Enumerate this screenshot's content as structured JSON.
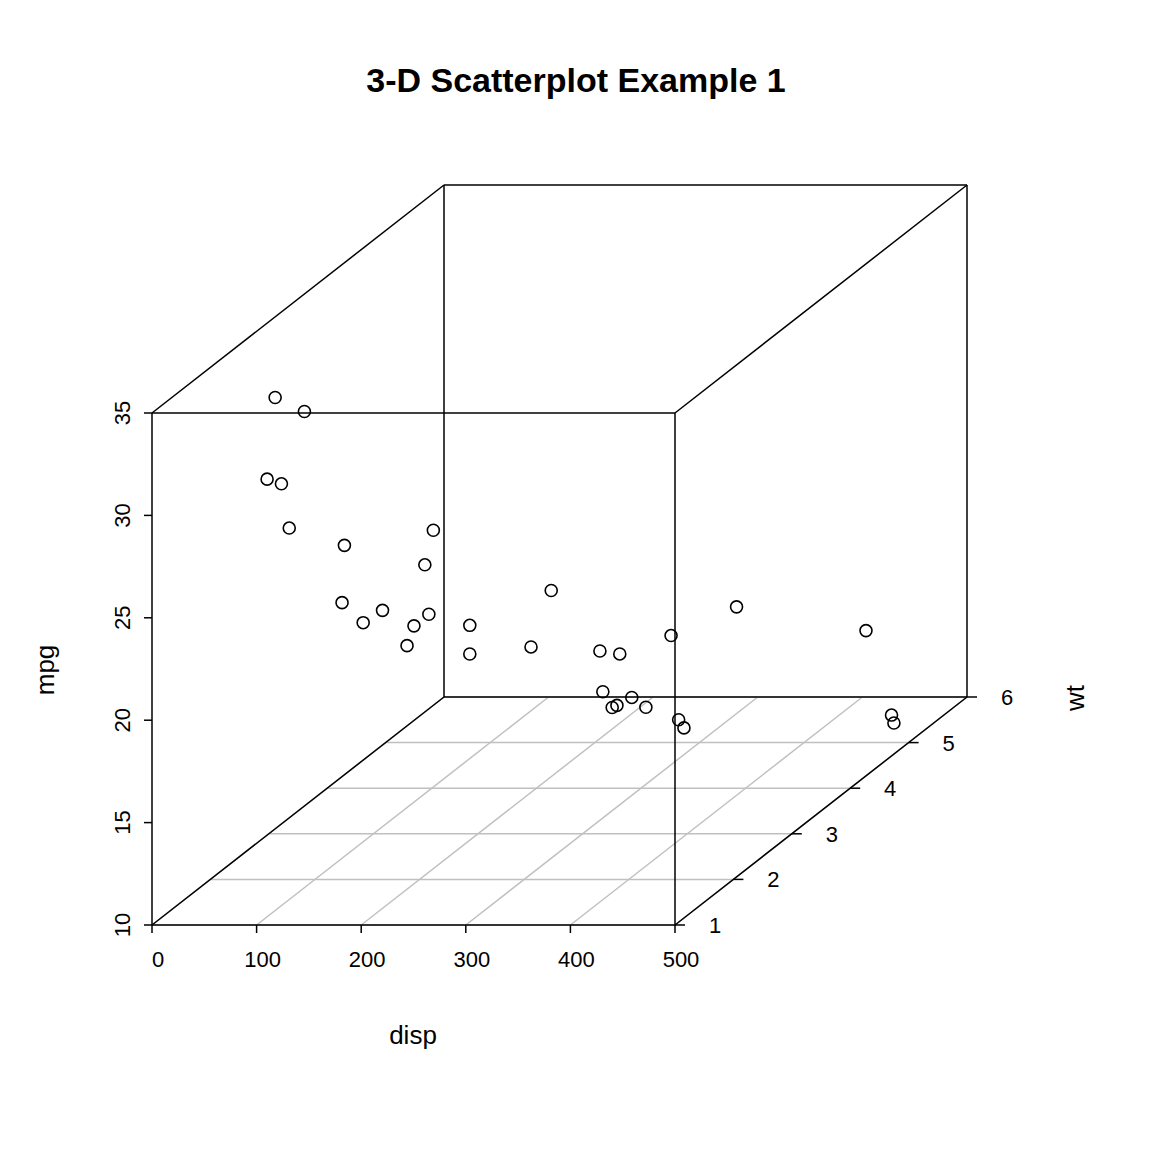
{
  "chart_data": {
    "type": "scatter3d",
    "title": "3-D Scatterplot Example 1",
    "x_label": "disp",
    "y_label": "wt",
    "z_label": "mpg",
    "x": [
      160,
      160,
      108,
      258,
      360,
      225,
      360,
      146.7,
      140.8,
      167.6,
      167.6,
      275.8,
      275.8,
      275.8,
      472,
      460,
      440,
      78.7,
      75.7,
      71.1,
      120.1,
      318,
      304,
      350,
      400,
      79,
      120.3,
      95.1,
      351,
      145,
      301,
      121
    ],
    "y": [
      2.62,
      2.875,
      2.32,
      3.215,
      3.44,
      3.46,
      3.57,
      3.19,
      3.15,
      3.44,
      3.44,
      4.07,
      3.73,
      3.78,
      5.25,
      5.424,
      5.345,
      2.2,
      1.615,
      1.835,
      2.465,
      3.52,
      3.435,
      3.84,
      3.845,
      1.935,
      2.14,
      1.513,
      3.17,
      2.77,
      3.57,
      2.78
    ],
    "z": [
      21.0,
      21.0,
      22.8,
      21.4,
      18.7,
      18.1,
      14.3,
      24.4,
      22.8,
      19.2,
      17.8,
      16.4,
      17.3,
      15.2,
      10.4,
      10.4,
      14.7,
      32.4,
      30.4,
      33.9,
      21.5,
      15.5,
      15.2,
      13.3,
      19.2,
      27.3,
      26.0,
      30.4,
      15.8,
      19.7,
      15.0,
      21.4
    ],
    "xlim": [
      0,
      500
    ],
    "xticks": [
      0,
      100,
      200,
      300,
      400,
      500
    ],
    "ylim": [
      1,
      6
    ],
    "yticks": [
      1,
      2,
      3,
      4,
      5,
      6
    ],
    "zlim": [
      10,
      35
    ],
    "zticks": [
      10,
      15,
      20,
      25,
      30,
      35
    ],
    "grid": true,
    "marker": "open-circle",
    "color": "#000000"
  }
}
